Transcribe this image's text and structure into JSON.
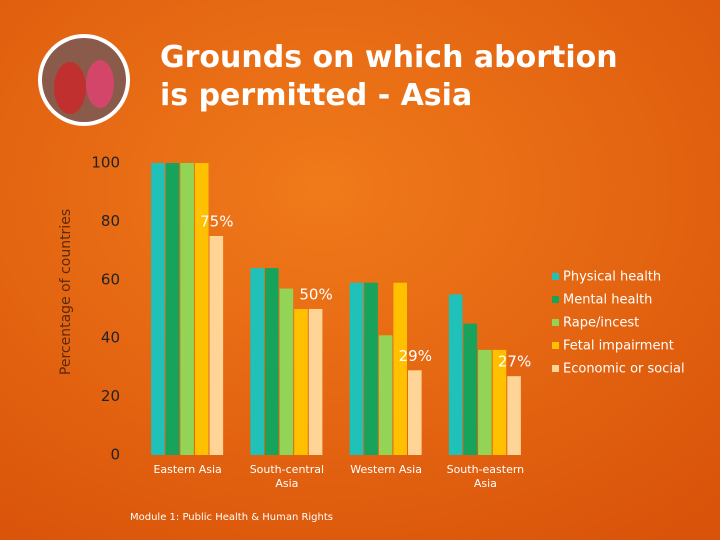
{
  "chart_data": {
    "type": "bar",
    "title": "Grounds on which abortion is permitted - Asia",
    "y_label": "Percentage of countries",
    "categories": [
      "Eastern Asia",
      "South-central Asia",
      "Western Asia",
      "South-eastern Asia"
    ],
    "series": [
      {
        "name": "Physical health",
        "color": "#1fc1b9",
        "values": [
          100,
          64,
          59,
          55
        ]
      },
      {
        "name": "Mental health",
        "color": "#17a35b",
        "values": [
          100,
          64,
          59,
          45
        ]
      },
      {
        "name": "Rape/incest",
        "color": "#93d356",
        "values": [
          100,
          57,
          41,
          36
        ]
      },
      {
        "name": "Fetal impairment",
        "color": "#ffc000",
        "values": [
          100,
          50,
          59,
          36
        ]
      },
      {
        "name": "Economic or social",
        "color": "#ffd597",
        "values": [
          75,
          50,
          29,
          27
        ],
        "value_labels": [
          "75%",
          "50%",
          "29%",
          "27%"
        ]
      }
    ],
    "ylim": [
      0,
      100
    ],
    "yticks": [
      0,
      20,
      40,
      60,
      80,
      100
    ],
    "grid": false,
    "legend": "right"
  },
  "footer": "Module 1: Public Health & Human Rights"
}
